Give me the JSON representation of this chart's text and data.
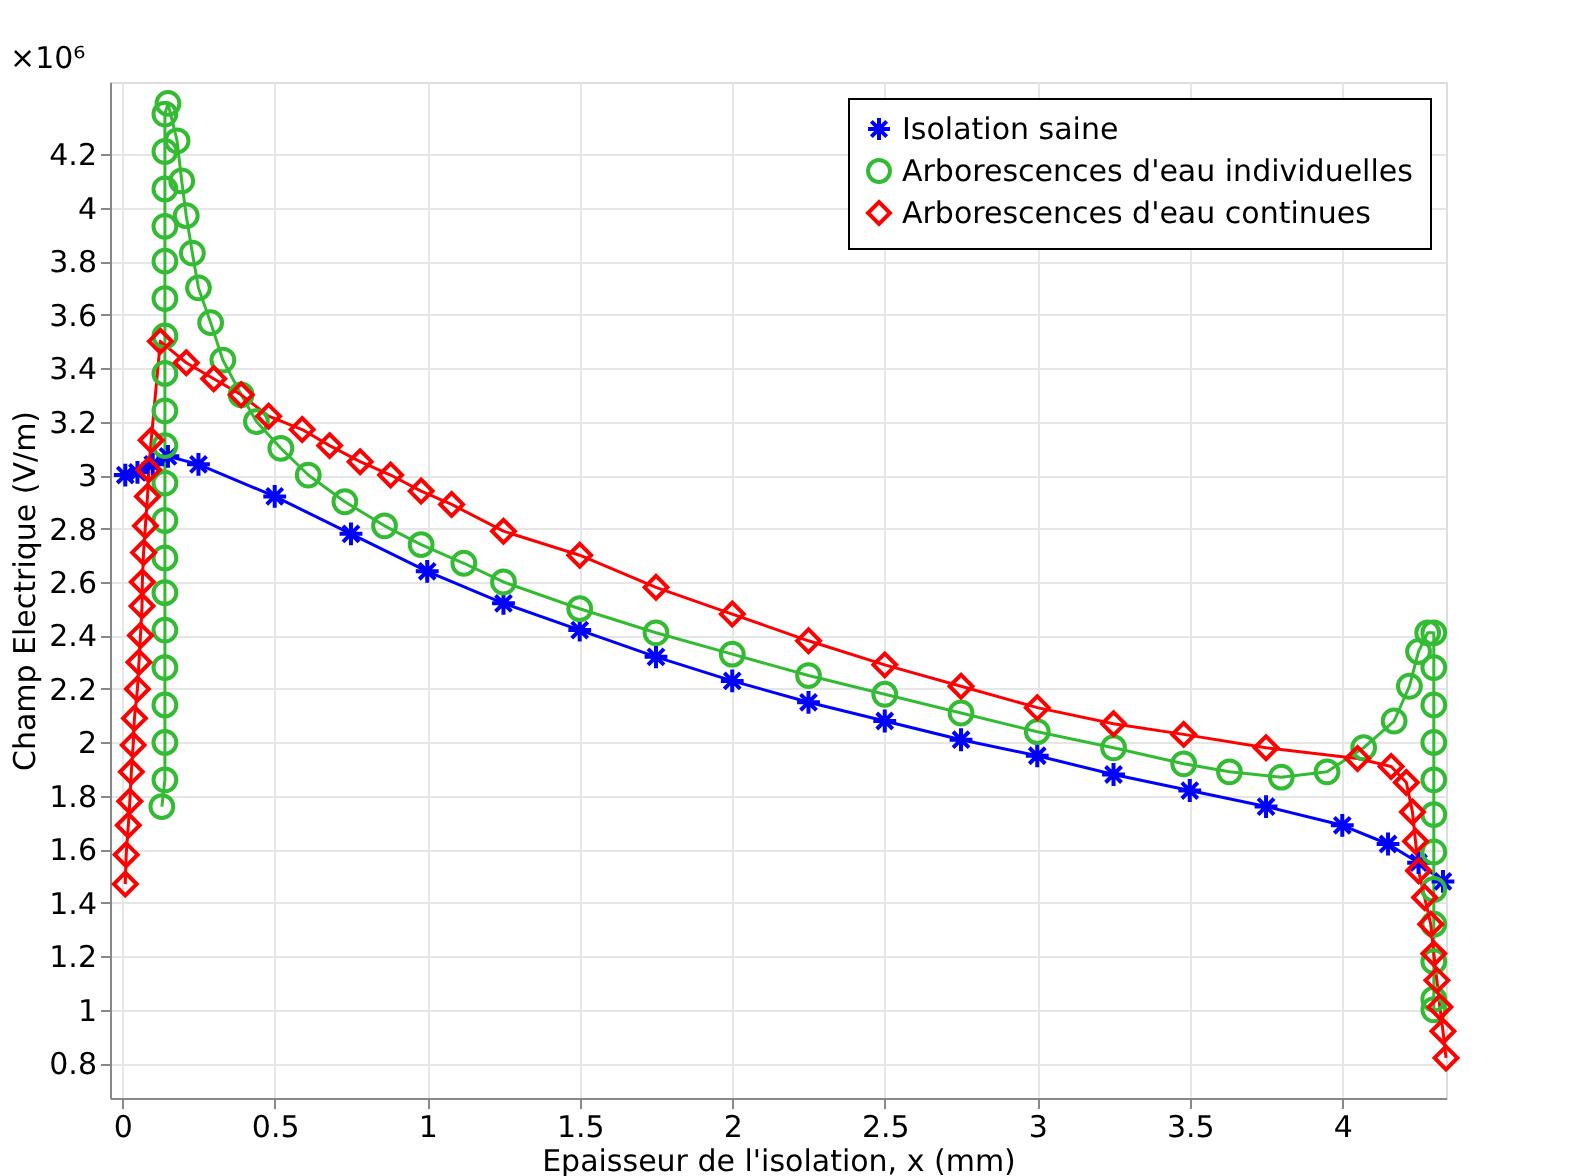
{
  "chart_data": {
    "type": "line",
    "xlabel": "Epaisseur de l'isolation, x (mm)",
    "ylabel": "Champ Electrique  (V/m)",
    "annotations": [
      "×10⁶"
    ],
    "xlim": [
      -0.04,
      4.34
    ],
    "ylim": [
      0.67,
      4.47
    ],
    "xticks": [
      0,
      0.5,
      1,
      1.5,
      2,
      2.5,
      3,
      3.5,
      4
    ],
    "yticks": [
      0.8,
      1,
      1.2,
      1.4,
      1.6,
      1.8,
      2,
      2.2,
      2.4,
      2.6,
      2.8,
      3,
      3.2,
      3.4,
      3.6,
      3.8,
      4,
      4.2
    ],
    "grid": true,
    "legend": "top right",
    "series": [
      {
        "name": "Isolation saine",
        "color": "#0000ff",
        "marker": "cross",
        "x": [
          0.01,
          0.05,
          0.1,
          0.15,
          0.25,
          0.5,
          0.75,
          1,
          1.25,
          1.5,
          1.75,
          2,
          2.25,
          2.5,
          2.75,
          3,
          3.25,
          3.5,
          3.75,
          4,
          4.15,
          4.25,
          4.33
        ],
        "values": [
          3.0,
          3.01,
          3.04,
          3.07,
          3.04,
          2.92,
          2.78,
          2.64,
          2.52,
          2.42,
          2.32,
          2.23,
          2.15,
          2.08,
          2.01,
          1.95,
          1.88,
          1.82,
          1.76,
          1.69,
          1.62,
          1.55,
          1.48
        ]
      },
      {
        "name": "Arborescences d'eau individuelles",
        "color": "#33bb33",
        "marker": "circle",
        "x": [
          0.13,
          0.14,
          0.14,
          0.14,
          0.14,
          0.14,
          0.14,
          0.14,
          0.14,
          0.14,
          0.14,
          0.14,
          0.14,
          0.14,
          0.14,
          0.14,
          0.14,
          0.14,
          0.14,
          0.14,
          0.15,
          0.18,
          0.195,
          0.21,
          0.23,
          0.25,
          0.29,
          0.33,
          0.39,
          0.44,
          0.52,
          0.61,
          0.73,
          0.86,
          0.98,
          1.12,
          1.25,
          1.5,
          1.75,
          2,
          2.25,
          2.5,
          2.75,
          3,
          3.25,
          3.48,
          3.63,
          3.8,
          3.95,
          4.07,
          4.17,
          4.22,
          4.25,
          4.28,
          4.3,
          4.3,
          4.3,
          4.3,
          4.3,
          4.3,
          4.3,
          4.3,
          4.3,
          4.3,
          4.3,
          4.3
        ],
        "values": [
          1.76,
          1.86,
          2.0,
          2.14,
          2.28,
          2.42,
          2.56,
          2.69,
          2.83,
          2.97,
          3.11,
          3.24,
          3.38,
          3.52,
          3.66,
          3.8,
          3.93,
          4.07,
          4.21,
          4.35,
          4.39,
          4.25,
          4.1,
          3.97,
          3.83,
          3.7,
          3.57,
          3.43,
          3.3,
          3.2,
          3.1,
          3.0,
          2.9,
          2.81,
          2.74,
          2.67,
          2.6,
          2.5,
          2.41,
          2.33,
          2.25,
          2.18,
          2.11,
          2.04,
          1.98,
          1.92,
          1.89,
          1.87,
          1.89,
          1.98,
          2.08,
          2.21,
          2.34,
          2.41,
          2.41,
          2.28,
          2.14,
          2.0,
          1.86,
          1.73,
          1.59,
          1.45,
          1.32,
          1.18,
          1.04,
          1.0
        ]
      },
      {
        "name": "Arborescences d'eau continues",
        "color": "#ff0000",
        "marker": "diamond",
        "x": [
          0.01,
          0.013,
          0.02,
          0.025,
          0.03,
          0.036,
          0.04,
          0.05,
          0.055,
          0.06,
          0.065,
          0.066,
          0.07,
          0.076,
          0.083,
          0.087,
          0.095,
          0.125,
          0.21,
          0.3,
          0.39,
          0.48,
          0.59,
          0.68,
          0.78,
          0.88,
          0.98,
          1.08,
          1.25,
          1.5,
          1.75,
          2,
          2.25,
          2.5,
          2.75,
          3,
          3.25,
          3.48,
          3.75,
          4.05,
          4.16,
          4.21,
          4.23,
          4.24,
          4.25,
          4.27,
          4.29,
          4.3,
          4.31,
          4.32,
          4.33,
          4.34
        ],
        "values": [
          1.47,
          1.58,
          1.69,
          1.78,
          1.89,
          1.99,
          2.09,
          2.2,
          2.3,
          2.4,
          2.51,
          2.6,
          2.71,
          2.81,
          2.92,
          3.02,
          3.13,
          3.5,
          3.42,
          3.36,
          3.3,
          3.22,
          3.17,
          3.11,
          3.05,
          3.0,
          2.94,
          2.89,
          2.79,
          2.7,
          2.58,
          2.48,
          2.38,
          2.29,
          2.21,
          2.13,
          2.07,
          2.03,
          1.98,
          1.94,
          1.91,
          1.85,
          1.74,
          1.63,
          1.52,
          1.42,
          1.32,
          1.21,
          1.11,
          1.01,
          0.92,
          0.82
        ]
      }
    ]
  }
}
